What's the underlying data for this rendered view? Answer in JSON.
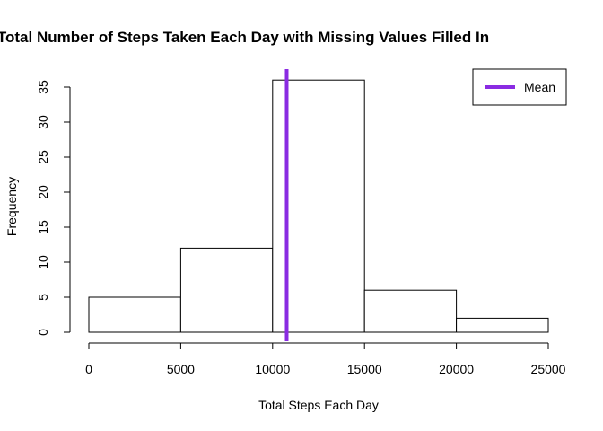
{
  "chart_data": {
    "type": "bar",
    "title": "Total Number of Steps Taken Each Day with Missing Values Filled In",
    "xlabel": "Total Steps Each Day",
    "ylabel": "Frequency",
    "bins": [
      {
        "start": 0,
        "end": 5000,
        "count": 5
      },
      {
        "start": 5000,
        "end": 10000,
        "count": 12
      },
      {
        "start": 10000,
        "end": 15000,
        "count": 36
      },
      {
        "start": 15000,
        "end": 20000,
        "count": 6
      },
      {
        "start": 20000,
        "end": 25000,
        "count": 2
      }
    ],
    "xlim": [
      0,
      25000
    ],
    "ylim": [
      0,
      36
    ],
    "x_ticks": [
      0,
      5000,
      10000,
      15000,
      20000,
      25000
    ],
    "y_ticks": [
      0,
      5,
      10,
      15,
      20,
      25,
      30,
      35
    ],
    "mean_line": {
      "value": 10766.19,
      "label": "Mean",
      "color": "#8a2be2"
    },
    "legend": {
      "position": "top-right",
      "entries": [
        "Mean"
      ]
    },
    "grid": false
  }
}
